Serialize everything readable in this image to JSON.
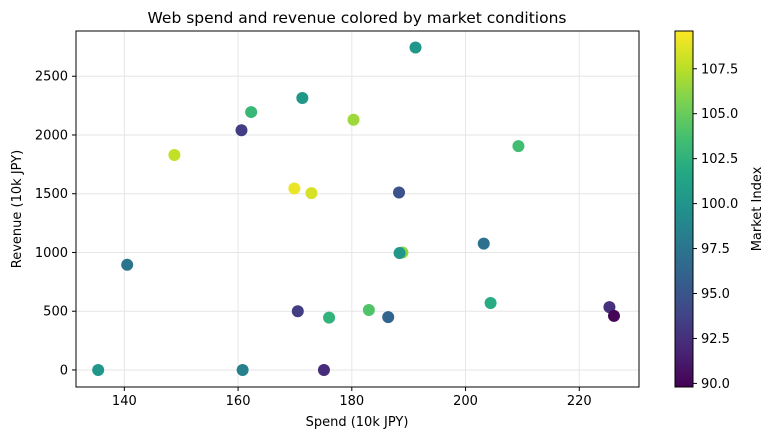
{
  "chart_data": {
    "type": "scatter",
    "title": "Web spend and revenue colored by market conditions",
    "xlabel": "Spend (10k JPY)",
    "ylabel": "Revenue (10k JPY)",
    "colorbar_label": "Market Index",
    "xlim": [
      131.5,
      230.5
    ],
    "ylim": [
      -145,
      2885
    ],
    "xticks": [
      "140",
      "160",
      "180",
      "200",
      "220"
    ],
    "yticks": [
      "0",
      "500",
      "1000",
      "1500",
      "2000",
      "2500"
    ],
    "colorbar_range": [
      89.8,
      109.6
    ],
    "colorbar_ticks": [
      "90.0",
      "92.5",
      "95.0",
      "97.5",
      "100.0",
      "102.5",
      "105.0",
      "107.5"
    ],
    "colormap": "viridis",
    "grid": true,
    "points": [
      {
        "x": 135.4,
        "y": 0,
        "c": 100.2
      },
      {
        "x": 140.5,
        "y": 895,
        "c": 97.3
      },
      {
        "x": 148.8,
        "y": 1830,
        "c": 107.8
      },
      {
        "x": 160.6,
        "y": 2040,
        "c": 93.3
      },
      {
        "x": 160.8,
        "y": 0,
        "c": 98.4
      },
      {
        "x": 162.3,
        "y": 2195,
        "c": 103.0
      },
      {
        "x": 169.9,
        "y": 1545,
        "c": 109.0
      },
      {
        "x": 170.5,
        "y": 500,
        "c": 93.3
      },
      {
        "x": 171.3,
        "y": 2315,
        "c": 100.2
      },
      {
        "x": 172.9,
        "y": 1505,
        "c": 108.4
      },
      {
        "x": 175.1,
        "y": 0,
        "c": 92.3
      },
      {
        "x": 176.0,
        "y": 445,
        "c": 102.6
      },
      {
        "x": 180.3,
        "y": 2130,
        "c": 106.7
      },
      {
        "x": 183.0,
        "y": 510,
        "c": 104.1
      },
      {
        "x": 186.4,
        "y": 450,
        "c": 96.2
      },
      {
        "x": 188.3,
        "y": 1510,
        "c": 94.8
      },
      {
        "x": 188.9,
        "y": 1000,
        "c": 106.1
      },
      {
        "x": 188.4,
        "y": 995,
        "c": 100.2
      },
      {
        "x": 191.2,
        "y": 2745,
        "c": 100.1
      },
      {
        "x": 203.2,
        "y": 1075,
        "c": 97.2
      },
      {
        "x": 204.4,
        "y": 570,
        "c": 101.9
      },
      {
        "x": 209.3,
        "y": 1905,
        "c": 103.5
      },
      {
        "x": 225.3,
        "y": 535,
        "c": 92.6
      },
      {
        "x": 226.1,
        "y": 460,
        "c": 90.0
      }
    ]
  }
}
